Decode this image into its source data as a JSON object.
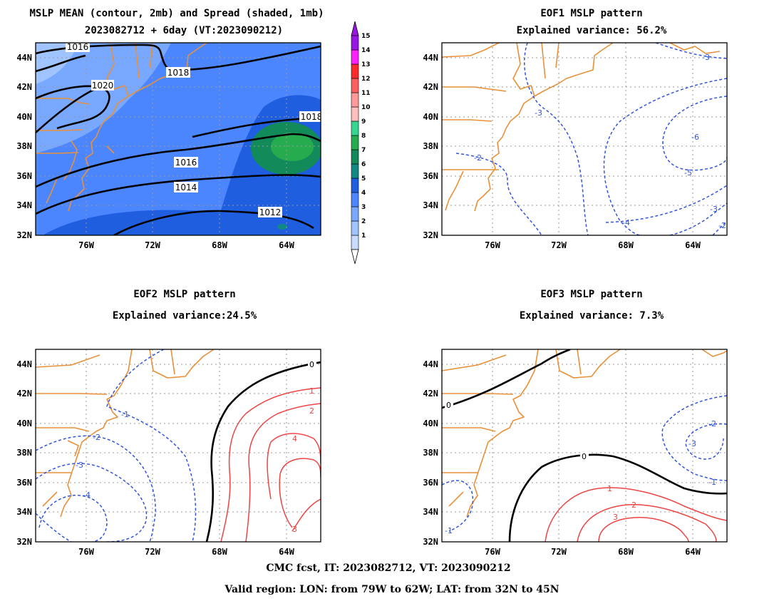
{
  "footer": {
    "line1": "CMC fcst, IT: 2023082712, VT: 2023090212",
    "line2": "Valid region: LON: from 79W to 62W; LAT: from 32N to 45N"
  },
  "colorbar": {
    "labels": [
      "1",
      "2",
      "3",
      "4",
      "5",
      "6",
      "7",
      "8",
      "9",
      "10",
      "11",
      "12",
      "13",
      "14",
      "15"
    ],
    "colors": [
      "#c8dcff",
      "#a0c4ff",
      "#78a8ff",
      "#4c86ff",
      "#1f5fdf",
      "#128a84",
      "#128a5a",
      "#26ac4e",
      "#35d690",
      "#ffbdbd",
      "#ff9a9a",
      "#ff5e5e",
      "#ff2b2b",
      "#ff22ff",
      "#9a16e6"
    ]
  },
  "colors": {
    "coast": "#e8913a",
    "positive": "#ee4444",
    "negative": "#3355dd",
    "zero": "#000000"
  },
  "chart_data": [
    {
      "type": "contour",
      "title": "MSLP MEAN (contour, 2mb) and Spread (shaded, 1mb)",
      "subtitle": "2023082712 + 6day (VT:2023090212)",
      "x_ticks": [
        "76W",
        "72W",
        "68W",
        "64W"
      ],
      "y_ticks": [
        "44N",
        "42N",
        "40N",
        "38N",
        "36N",
        "34N",
        "32N"
      ],
      "contour_labels": [
        "1020",
        "1018",
        "1016",
        "1016",
        "1014",
        "1012",
        "1018"
      ],
      "shading": "spread 4-5 mb, max 8 mb near 38N 64W"
    },
    {
      "type": "contour",
      "title": "EOF1 MSLP pattern",
      "subtitle": "Explained variance: 56.2%",
      "x_ticks": [
        "76W",
        "72W",
        "68W",
        "64W"
      ],
      "y_ticks": [
        "44N",
        "42N",
        "40N",
        "38N",
        "36N",
        "34N",
        "32N"
      ],
      "contour_labels": [
        "-3",
        "-3",
        "-2",
        "-6",
        "-5",
        "-4",
        "-3",
        "-2"
      ]
    },
    {
      "type": "contour",
      "title": "EOF2 MSLP pattern",
      "subtitle": "Explained variance:24.5%",
      "x_ticks": [
        "76W",
        "72W",
        "68W",
        "64W"
      ],
      "y_ticks": [
        "44N",
        "42N",
        "40N",
        "38N",
        "36N",
        "34N",
        "32N"
      ],
      "contour_labels": [
        "0",
        "1",
        "2",
        "4",
        "3",
        "-1",
        "-2",
        "-3",
        "-4"
      ]
    },
    {
      "type": "contour",
      "title": "EOF3 MSLP pattern",
      "subtitle": "Explained variance: 7.3%",
      "x_ticks": [
        "76W",
        "72W",
        "68W",
        "64W"
      ],
      "y_ticks": [
        "44N",
        "42N",
        "40N",
        "38N",
        "36N",
        "34N",
        "32N"
      ],
      "contour_labels": [
        "0",
        "0",
        "-2",
        "-3",
        "-1",
        "1",
        "2",
        "3",
        "-1"
      ]
    }
  ]
}
